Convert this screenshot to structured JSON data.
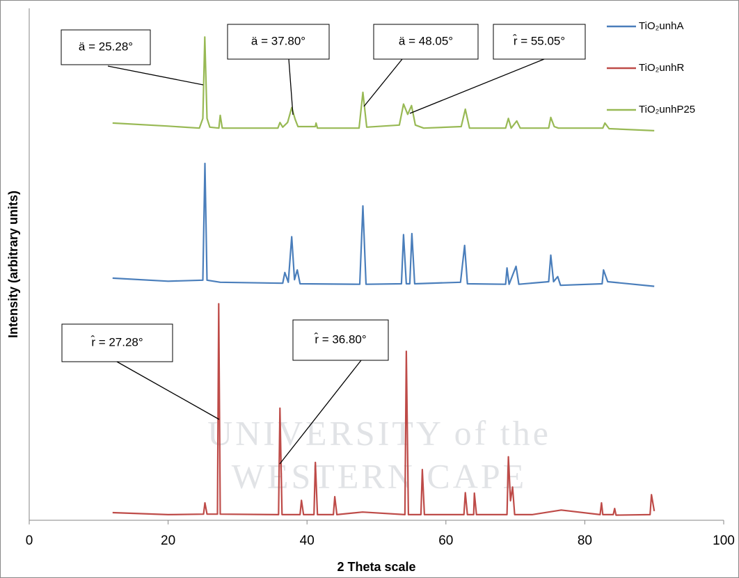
{
  "chart_data": {
    "type": "line",
    "xlabel": "2 Theta scale",
    "ylabel": "Intensity  (arbitrary units)",
    "xlim": [
      0,
      100
    ],
    "xticks": [
      0,
      20,
      40,
      60,
      80,
      100
    ],
    "ylim": [
      0,
      100
    ],
    "legend": "top-right",
    "watermark": [
      "UNIVERSITY of the",
      "WESTERN CAPE"
    ],
    "annotations": [
      "ä = 25.28°",
      "ä = 37.80°",
      "ä = 48.05°",
      "r̂ = 55.05°",
      "r̂ = 27.28°",
      "r̂ = 36.80°"
    ],
    "series": [
      {
        "name": "TiO₂unhA",
        "color": "#4a7ebb",
        "x": [
          12,
          20,
          25,
          25.3,
          25.6,
          27.5,
          36.5,
          36.8,
          37.3,
          37.8,
          38.2,
          38.6,
          39,
          47.6,
          48.05,
          48.5,
          53.6,
          53.9,
          54.3,
          54.8,
          55.1,
          55.5,
          62.1,
          62.7,
          63.1,
          68.6,
          68.8,
          69.1,
          70.1,
          70.5,
          74.8,
          75.1,
          75.5,
          76.1,
          76.5,
          82.5,
          82.7,
          83.3,
          90
        ],
        "values": [
          47.3,
          46.7,
          46.9,
          69.7,
          46.9,
          46.5,
          46.3,
          48.4,
          46.5,
          55.4,
          47.0,
          48.9,
          46.2,
          46.1,
          61.4,
          46.1,
          46.2,
          55.8,
          46.2,
          46.2,
          56.0,
          46.2,
          46.5,
          53.7,
          46.2,
          46.1,
          49.3,
          46.1,
          49.6,
          46.1,
          46.6,
          51.8,
          46.6,
          47.6,
          45.9,
          46.2,
          48.9,
          46.6,
          45.7
        ]
      },
      {
        "name": "TiO₂unhR",
        "color": "#be4b48",
        "x": [
          12,
          20,
          25.1,
          25.3,
          25.6,
          27.1,
          27.28,
          27.5,
          35.9,
          36.1,
          36.4,
          39.0,
          39.2,
          39.5,
          41.0,
          41.2,
          41.5,
          43.8,
          44.0,
          44.3,
          48.0,
          54.1,
          54.3,
          54.6,
          56.4,
          56.6,
          56.9,
          62.6,
          62.8,
          63.1,
          64.0,
          64.1,
          64.4,
          68.8,
          69.0,
          69.3,
          69.6,
          69.9,
          72.4,
          76.6,
          82.2,
          82.4,
          82.6,
          84.1,
          84.3,
          84.5,
          89.4,
          89.6,
          90
        ],
        "values": [
          1.5,
          1.1,
          1.2,
          3.4,
          1.2,
          1.2,
          42.3,
          1.2,
          1.1,
          21.9,
          1.1,
          1.1,
          3.9,
          1.1,
          1.1,
          11.3,
          1.1,
          1.1,
          4.6,
          1.1,
          1.6,
          1.1,
          33.0,
          1.1,
          1.1,
          9.9,
          1.1,
          1.1,
          5.4,
          1.1,
          1.1,
          5.3,
          1.1,
          1.1,
          12.4,
          3.8,
          6.5,
          1.1,
          1.1,
          2.0,
          1.1,
          3.4,
          1.1,
          1.1,
          2.3,
          1.0,
          1.1,
          5.0,
          1.8
        ]
      },
      {
        "name": "TiO₂unhP25",
        "color": "#98b954",
        "x": [
          12,
          20,
          24.5,
          25.0,
          25.28,
          25.6,
          26,
          27.3,
          27.5,
          27.8,
          35.8,
          36.1,
          36.5,
          37.2,
          37.8,
          38.3,
          38.7,
          41.2,
          41.3,
          41.5,
          47.5,
          48.05,
          48.6,
          53.3,
          53.9,
          54.5,
          55.05,
          55.6,
          56.8,
          62.2,
          62.8,
          63.4,
          68.6,
          69.0,
          69.4,
          70.2,
          70.7,
          74.8,
          75.1,
          75.6,
          76.2,
          82.6,
          82.9,
          83.5,
          90
        ],
        "values": [
          77.6,
          77.0,
          76.6,
          78.5,
          94.4,
          78.5,
          76.8,
          76.6,
          79.1,
          76.6,
          76.6,
          77.7,
          76.8,
          77.7,
          80.6,
          78.3,
          76.9,
          76.9,
          77.6,
          76.6,
          76.6,
          83.6,
          76.8,
          77.2,
          81.3,
          79.3,
          81.0,
          77.2,
          76.6,
          76.9,
          80.3,
          76.6,
          76.6,
          78.5,
          76.6,
          78.0,
          76.6,
          76.6,
          78.7,
          76.9,
          76.6,
          76.6,
          77.6,
          76.5,
          76.1
        ]
      }
    ]
  }
}
